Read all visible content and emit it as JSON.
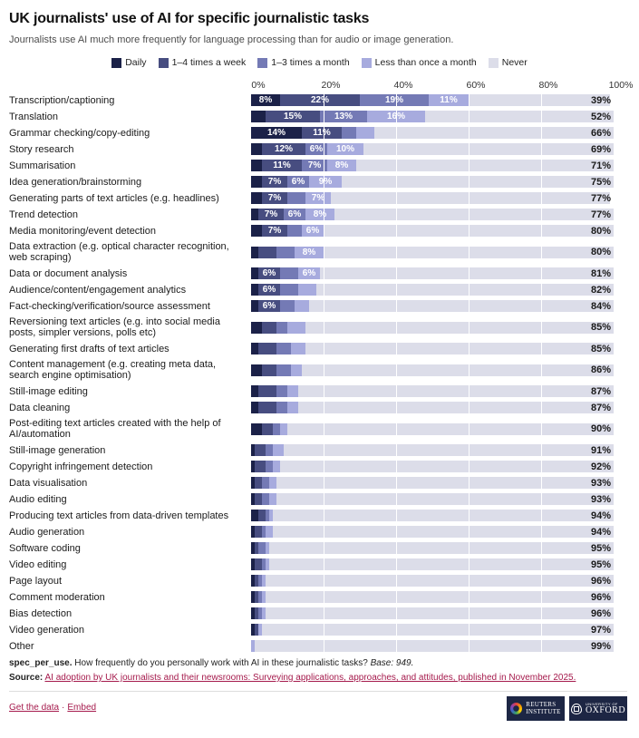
{
  "title": "UK journalists' use of AI for specific journalistic tasks",
  "subtitle": "Journalists use AI much more frequently for language processing than for audio or image generation.",
  "theme": {
    "link_color": "#a51a4c",
    "logo_bg": "#1d2644"
  },
  "axis_ticks": [
    "0%",
    "20%",
    "40%",
    "60%",
    "80%",
    "100%"
  ],
  "chart_data": {
    "type": "bar",
    "stacked": true,
    "orientation": "horizontal",
    "xlim": [
      0,
      100
    ],
    "label_min_show": 6,
    "legend_position": "top-center",
    "series_names": [
      "Daily",
      "1–4 times a week",
      "1–3 times a month",
      "Less than once a month",
      "Never"
    ],
    "series_slugs": [
      "daily",
      "1-4-times-a-week",
      "1-3-times-a-month",
      "less-than-once-a-month",
      "never"
    ],
    "colors": [
      "#1b2148",
      "#474d80",
      "#747ab5",
      "#a7abde",
      "#dcdde9"
    ],
    "rows": [
      {
        "label": "Transcription/captioning",
        "values": [
          8,
          22,
          19,
          11,
          39
        ]
      },
      {
        "label": "Translation",
        "values": [
          4,
          15,
          13,
          16,
          52
        ]
      },
      {
        "label": "Grammar checking/copy-editing",
        "values": [
          14,
          11,
          4,
          5,
          66
        ]
      },
      {
        "label": "Story research",
        "values": [
          3,
          12,
          6,
          10,
          69
        ]
      },
      {
        "label": "Summarisation",
        "values": [
          3,
          11,
          7,
          8,
          71
        ]
      },
      {
        "label": "Idea generation/brainstorming",
        "values": [
          3,
          7,
          6,
          9,
          75
        ]
      },
      {
        "label": "Generating parts of text articles (e.g. headlines)",
        "values": [
          3,
          7,
          5,
          7,
          77
        ]
      },
      {
        "label": "Trend detection",
        "values": [
          2,
          7,
          6,
          8,
          77
        ]
      },
      {
        "label": "Media monitoring/event detection",
        "values": [
          3,
          7,
          4,
          6,
          80
        ]
      },
      {
        "label": "Data extraction (e.g. optical character recognition, web scraping)",
        "values": [
          2,
          5,
          5,
          8,
          80
        ]
      },
      {
        "label": "Data or document analysis",
        "values": [
          2,
          6,
          5,
          6,
          81
        ]
      },
      {
        "label": "Audience/content/engagement analytics",
        "values": [
          2,
          6,
          5,
          5,
          82
        ]
      },
      {
        "label": "Fact-checking/verification/source assessment",
        "values": [
          2,
          6,
          4,
          4,
          84
        ]
      },
      {
        "label": "Reversioning text articles (e.g. into social media posts, simpler versions, polls etc)",
        "values": [
          3,
          4,
          3,
          5,
          85
        ]
      },
      {
        "label": "Generating first drafts of text articles",
        "values": [
          2,
          5,
          4,
          4,
          85
        ]
      },
      {
        "label": "Content management (e.g. creating meta data, search engine optimisation)",
        "values": [
          3,
          4,
          4,
          3,
          86
        ]
      },
      {
        "label": "Still-image editing",
        "values": [
          2,
          5,
          3,
          3,
          87
        ]
      },
      {
        "label": "Data cleaning",
        "values": [
          2,
          5,
          3,
          3,
          87
        ]
      },
      {
        "label": "Post-editing text articles created with the help of AI/automation",
        "values": [
          3,
          3,
          2,
          2,
          90
        ]
      },
      {
        "label": "Still-image generation",
        "values": [
          1,
          3,
          2,
          3,
          91
        ]
      },
      {
        "label": "Copyright infringement detection",
        "values": [
          1,
          3,
          2,
          2,
          92
        ]
      },
      {
        "label": "Data visualisation",
        "values": [
          1,
          2,
          2,
          2,
          93
        ]
      },
      {
        "label": "Audio editing",
        "values": [
          1,
          2,
          2,
          2,
          93
        ]
      },
      {
        "label": "Producing text articles from data-driven templates",
        "values": [
          2,
          2,
          1,
          1,
          94
        ]
      },
      {
        "label": "Audio generation",
        "values": [
          1,
          2,
          1,
          2,
          94
        ]
      },
      {
        "label": "Software coding",
        "values": [
          1,
          1,
          2,
          1,
          95
        ]
      },
      {
        "label": "Video editing",
        "values": [
          1,
          2,
          1,
          1,
          95
        ]
      },
      {
        "label": "Page layout",
        "values": [
          1,
          1,
          1,
          1,
          96
        ]
      },
      {
        "label": "Comment moderation",
        "values": [
          1,
          1,
          1,
          1,
          96
        ]
      },
      {
        "label": "Bias detection",
        "values": [
          1,
          1,
          1,
          1,
          96
        ]
      },
      {
        "label": "Video generation",
        "values": [
          1,
          1,
          0,
          1,
          97
        ]
      },
      {
        "label": "Other",
        "values": [
          0,
          0,
          0,
          1,
          99
        ]
      }
    ]
  },
  "footer": {
    "question_id": "spec_per_use.",
    "question_text": "How frequently do you personally work with AI in these journalistic tasks?",
    "base": "Base: 949.",
    "source_label": "Source:",
    "source_link": "AI adoption by UK journalists and their newsrooms: Surveying applications, approaches, and attitudes, published in November 2025.",
    "get_data": "Get the data",
    "separator": "·",
    "embed": "Embed"
  },
  "logos": {
    "reuters_line1": "REUTERS",
    "reuters_line2": "INSTITUTE",
    "oxford_line1": "UNIVERSITY OF",
    "oxford_line2": "OXFORD"
  }
}
